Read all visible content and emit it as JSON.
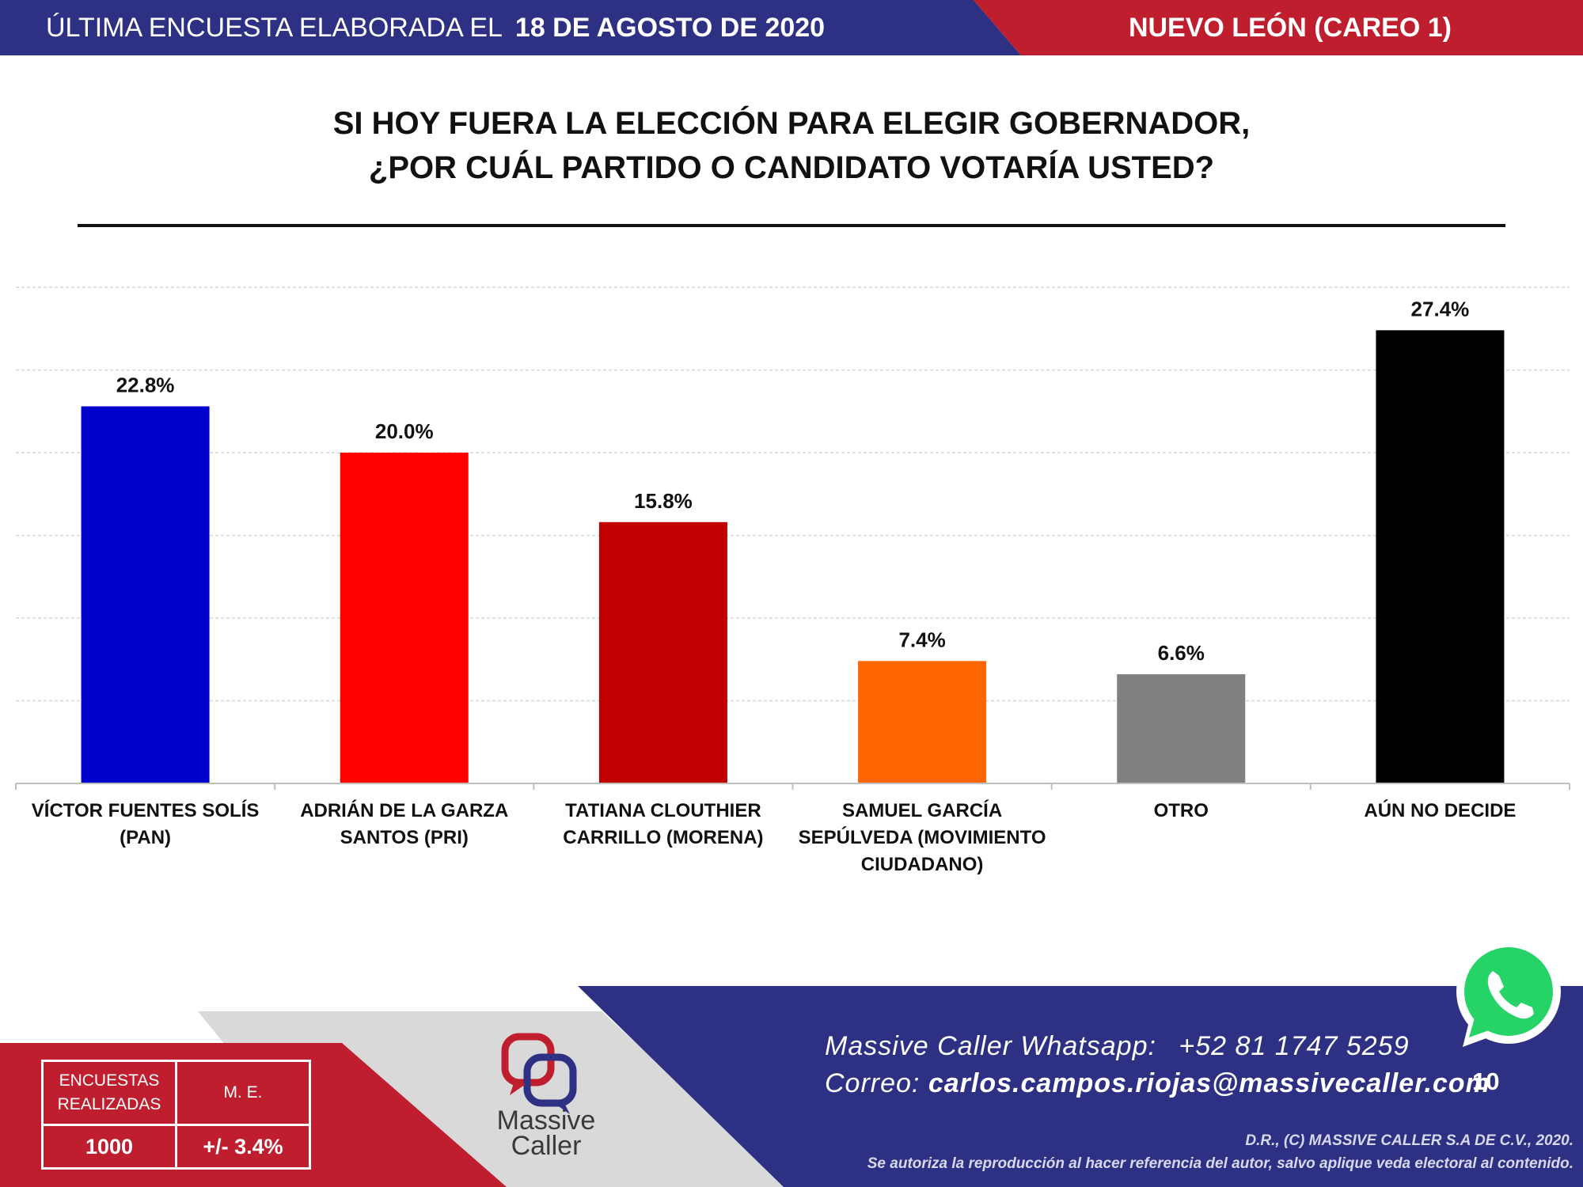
{
  "header": {
    "label": "ÚLTIMA ENCUESTA ELABORADA EL",
    "date": "18 DE AGOSTO DE 2020",
    "region": "NUEVO LEÓN (CAREO 1)"
  },
  "question": {
    "line1": "SI HOY FUERA LA ELECCIÓN PARA ELEGIR GOBERNADOR,",
    "line2": "¿POR CUÁL PARTIDO O CANDIDATO VOTARÍA USTED?"
  },
  "chart_data": {
    "type": "bar",
    "title": "SI HOY FUERA LA ELECCIÓN PARA ELEGIR GOBERNADOR, ¿POR CUÁL PARTIDO O CANDIDATO VOTARÍA USTED?",
    "unit": "%",
    "ylim": [
      0,
      30
    ],
    "grid": true,
    "categories": [
      "VÍCTOR FUENTES SOLÍS (PAN)",
      "ADRIÁN DE LA GARZA SANTOS (PRI)",
      "TATIANA CLOUTHIER CARRILLO (MORENA)",
      "SAMUEL GARCÍA SEPÚLVEDA (MOVIMIENTO CIUDADANO)",
      "OTRO",
      "AÚN NO DECIDE"
    ],
    "label_lines": [
      [
        "VÍCTOR FUENTES SOLÍS",
        "(PAN)"
      ],
      [
        "ADRIÁN DE LA GARZA",
        "SANTOS (PRI)"
      ],
      [
        "TATIANA CLOUTHIER",
        "CARRILLO (MORENA)"
      ],
      [
        "SAMUEL GARCÍA",
        "SEPÚLVEDA (MOVIMIENTO",
        "CIUDADANO)"
      ],
      [
        "OTRO"
      ],
      [
        "AÚN NO DECIDE"
      ]
    ],
    "values": [
      22.8,
      20.0,
      15.8,
      7.4,
      6.6,
      27.4
    ],
    "value_labels": [
      "22.8%",
      "20.0%",
      "15.8%",
      "7.4%",
      "6.6%",
      "27.4%"
    ],
    "colors": [
      "#0000CC",
      "#FF0000",
      "#C00000",
      "#FF6600",
      "#808080",
      "#000000"
    ]
  },
  "stats": {
    "surveys_label_1": "ENCUESTAS",
    "surveys_label_2": "REALIZADAS",
    "surveys_value": "1000",
    "me_label": "M. E.",
    "me_value": "+/- 3.4%"
  },
  "brand": {
    "name": "Massive Caller",
    "name_1": "Massive",
    "name_2": "Caller"
  },
  "contact": {
    "whatsapp_label": "Massive Caller Whatsapp:",
    "whatsapp_number": "+52 81 1747 5259",
    "email_label": "Correo:",
    "email": "carlos.campos.riojas@massivecaller.com"
  },
  "page_number": "10",
  "copyright": {
    "line1": "D.R., (C) MASSIVE CALLER S.A DE C.V., 2020.",
    "line2": "Se autoriza la reproducción al hacer referencia del autor, salvo aplique veda electoral al contenido."
  },
  "colors": {
    "navy": "#2E3083",
    "red": "#BE1E2D",
    "gray": "#D9D9D9"
  }
}
